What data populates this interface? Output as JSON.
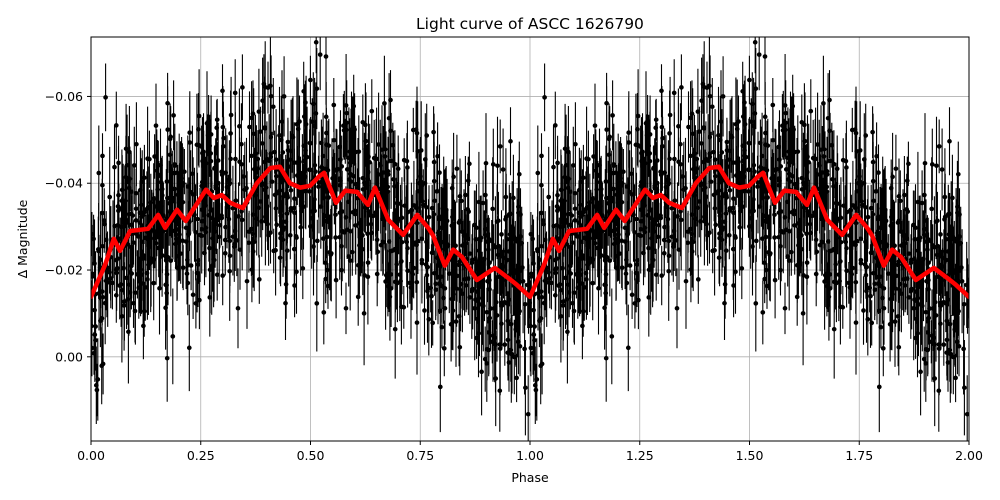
{
  "chart_data": {
    "type": "scatter",
    "title": "Light curve of ASCC 1626790",
    "xlabel": "Phase",
    "ylabel": "Δ Magnitude",
    "xlim": [
      0.0,
      2.0
    ],
    "ylim": [
      0.0194,
      -0.0737
    ],
    "y_inverted": true,
    "grid": true,
    "legend": null,
    "x_ticks": [
      0.0,
      0.25,
      0.5,
      0.75,
      1.0,
      1.25,
      1.5,
      1.75,
      2.0
    ],
    "x_tick_labels": [
      "0.00",
      "0.25",
      "0.50",
      "0.75",
      "1.00",
      "1.25",
      "1.50",
      "1.75",
      "2.00"
    ],
    "y_ticks": [
      -0.06,
      -0.04,
      -0.02,
      0.0
    ],
    "y_tick_labels": [
      "−0.06",
      "−0.04",
      "−0.02",
      "0.00"
    ],
    "series": [
      {
        "name": "observations",
        "kind": "errorbar-scatter",
        "color": "#000000",
        "description": "dense phase-folded photometry points with vertical error bars, scatter roughly ±0.02 mag around the smoothed curve; second cycle (phase 1-2) duplicates phase 0-1",
        "approx_points_per_cycle": 1100,
        "typical_error": 0.008
      },
      {
        "name": "smoothed light curve",
        "kind": "line",
        "color": "#ff0000",
        "linewidth": 4,
        "x": [
          0.0,
          0.027,
          0.034,
          0.052,
          0.066,
          0.089,
          0.13,
          0.153,
          0.169,
          0.196,
          0.216,
          0.262,
          0.28,
          0.298,
          0.317,
          0.346,
          0.378,
          0.408,
          0.43,
          0.453,
          0.476,
          0.499,
          0.519,
          0.531,
          0.558,
          0.579,
          0.606,
          0.631,
          0.647,
          0.677,
          0.711,
          0.743,
          0.768,
          0.779,
          0.806,
          0.825,
          0.845,
          0.879,
          0.92,
          0.95,
          0.97,
          1.0
        ],
        "y": [
          -0.0138,
          -0.02,
          -0.0217,
          -0.0272,
          -0.0244,
          -0.029,
          -0.0295,
          -0.0327,
          -0.0297,
          -0.0339,
          -0.0313,
          -0.0385,
          -0.0366,
          -0.0373,
          -0.0355,
          -0.0343,
          -0.04,
          -0.0435,
          -0.0438,
          -0.04,
          -0.039,
          -0.0394,
          -0.0415,
          -0.0424,
          -0.0355,
          -0.0383,
          -0.038,
          -0.035,
          -0.039,
          -0.0316,
          -0.0281,
          -0.0327,
          -0.0297,
          -0.028,
          -0.021,
          -0.0247,
          -0.023,
          -0.0177,
          -0.0205,
          -0.0182,
          -0.0166,
          -0.0138
        ],
        "repeats": 2
      }
    ]
  },
  "colors": {
    "data": "#000000",
    "fit": "#ff0000",
    "grid": "#b0b0b0",
    "frame": "#000000",
    "background": "#ffffff"
  }
}
